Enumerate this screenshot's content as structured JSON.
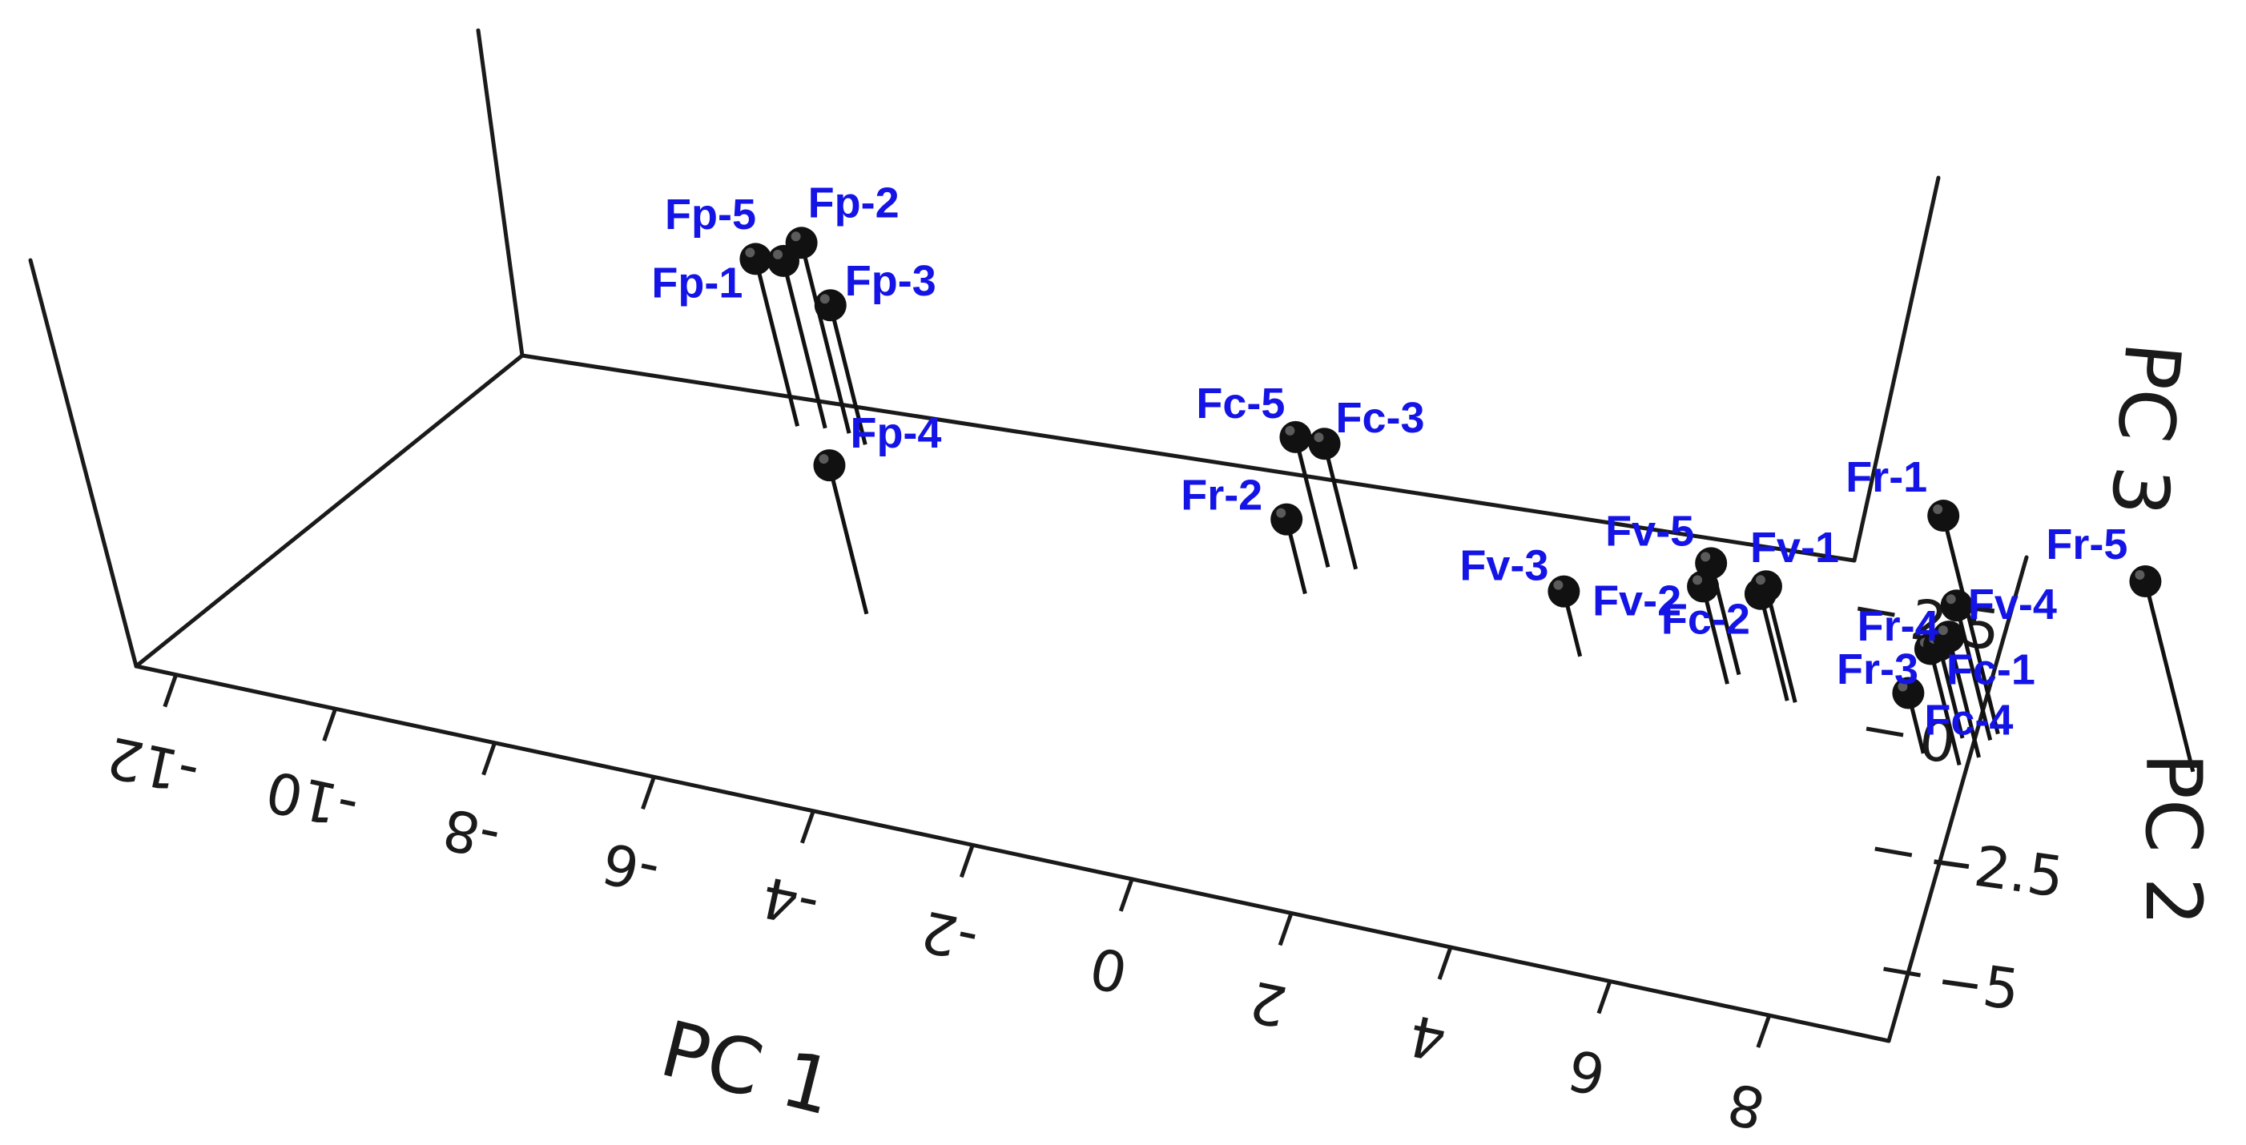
{
  "chart_data": {
    "type": "scatter",
    "projection": "3d",
    "xlabel": "PC 1",
    "ylabel": "PC 2",
    "zlabel": "PC 3",
    "x_ticks": [
      -12,
      -10,
      -8,
      -6,
      -4,
      -2,
      0,
      2,
      4,
      6,
      8
    ],
    "y_ticks": [
      2.5,
      0,
      -2.5,
      -5
    ],
    "y_tick_labels": [
      "2.5",
      "0",
      "−2.5",
      "−5"
    ],
    "xlim": [
      -12.5,
      9.5
    ],
    "ylim": [
      -6.5,
      3.5
    ],
    "marker_color": "#111111",
    "label_color": "#1414e6",
    "points": [
      {
        "label": "Fp-1",
        "x": -8.9,
        "y": 3.2,
        "z": 2.4
      },
      {
        "label": "Fp-2",
        "x": -8.3,
        "y": 3.3,
        "z": 2.9
      },
      {
        "label": "Fp-3",
        "x": -8.0,
        "y": 3.1,
        "z": 1.8
      },
      {
        "label": "Fp-4",
        "x": -5.9,
        "y": -1.2,
        "z": 2.0
      },
      {
        "label": "Fp-5",
        "x": -8.6,
        "y": 3.3,
        "z": 2.4
      },
      {
        "label": "Fc-1",
        "x": 6.8,
        "y": 0.9,
        "z": 1.3
      },
      {
        "label": "Fc-2",
        "x": 4.3,
        "y": 1.6,
        "z": 1.1
      },
      {
        "label": "Fc-3",
        "x": -1.6,
        "y": 2.6,
        "z": 1.5
      },
      {
        "label": "Fc-4",
        "x": 6.3,
        "y": 1.0,
        "z": 0.1
      },
      {
        "label": "Fc-5",
        "x": -1.9,
        "y": 2.5,
        "z": 1.6
      },
      {
        "label": "Fr-1",
        "x": 6.8,
        "y": 1.9,
        "z": 3.5
      },
      {
        "label": "Fr-2",
        "x": -1.8,
        "y": 1.7,
        "z": 0.4
      },
      {
        "label": "Fr-3",
        "x": 6.5,
        "y": 1.6,
        "z": 0.8
      },
      {
        "label": "Fr-4",
        "x": 6.8,
        "y": 1.7,
        "z": 1.7
      },
      {
        "label": "Fr-5",
        "x": 9.2,
        "y": 2.0,
        "z": 2.9
      },
      {
        "label": "Fv-1",
        "x": 4.4,
        "y": 1.6,
        "z": 1.3
      },
      {
        "label": "Fv-2",
        "x": 3.5,
        "y": 1.7,
        "z": 0.9
      },
      {
        "label": "Fv-3",
        "x": 1.7,
        "y": 1.6,
        "z": 0.2
      },
      {
        "label": "Fv-4",
        "x": 6.9,
        "y": 1.2,
        "z": 1.4
      },
      {
        "label": "Fv-5",
        "x": 3.5,
        "y": 2.0,
        "z": 1.2
      }
    ]
  }
}
